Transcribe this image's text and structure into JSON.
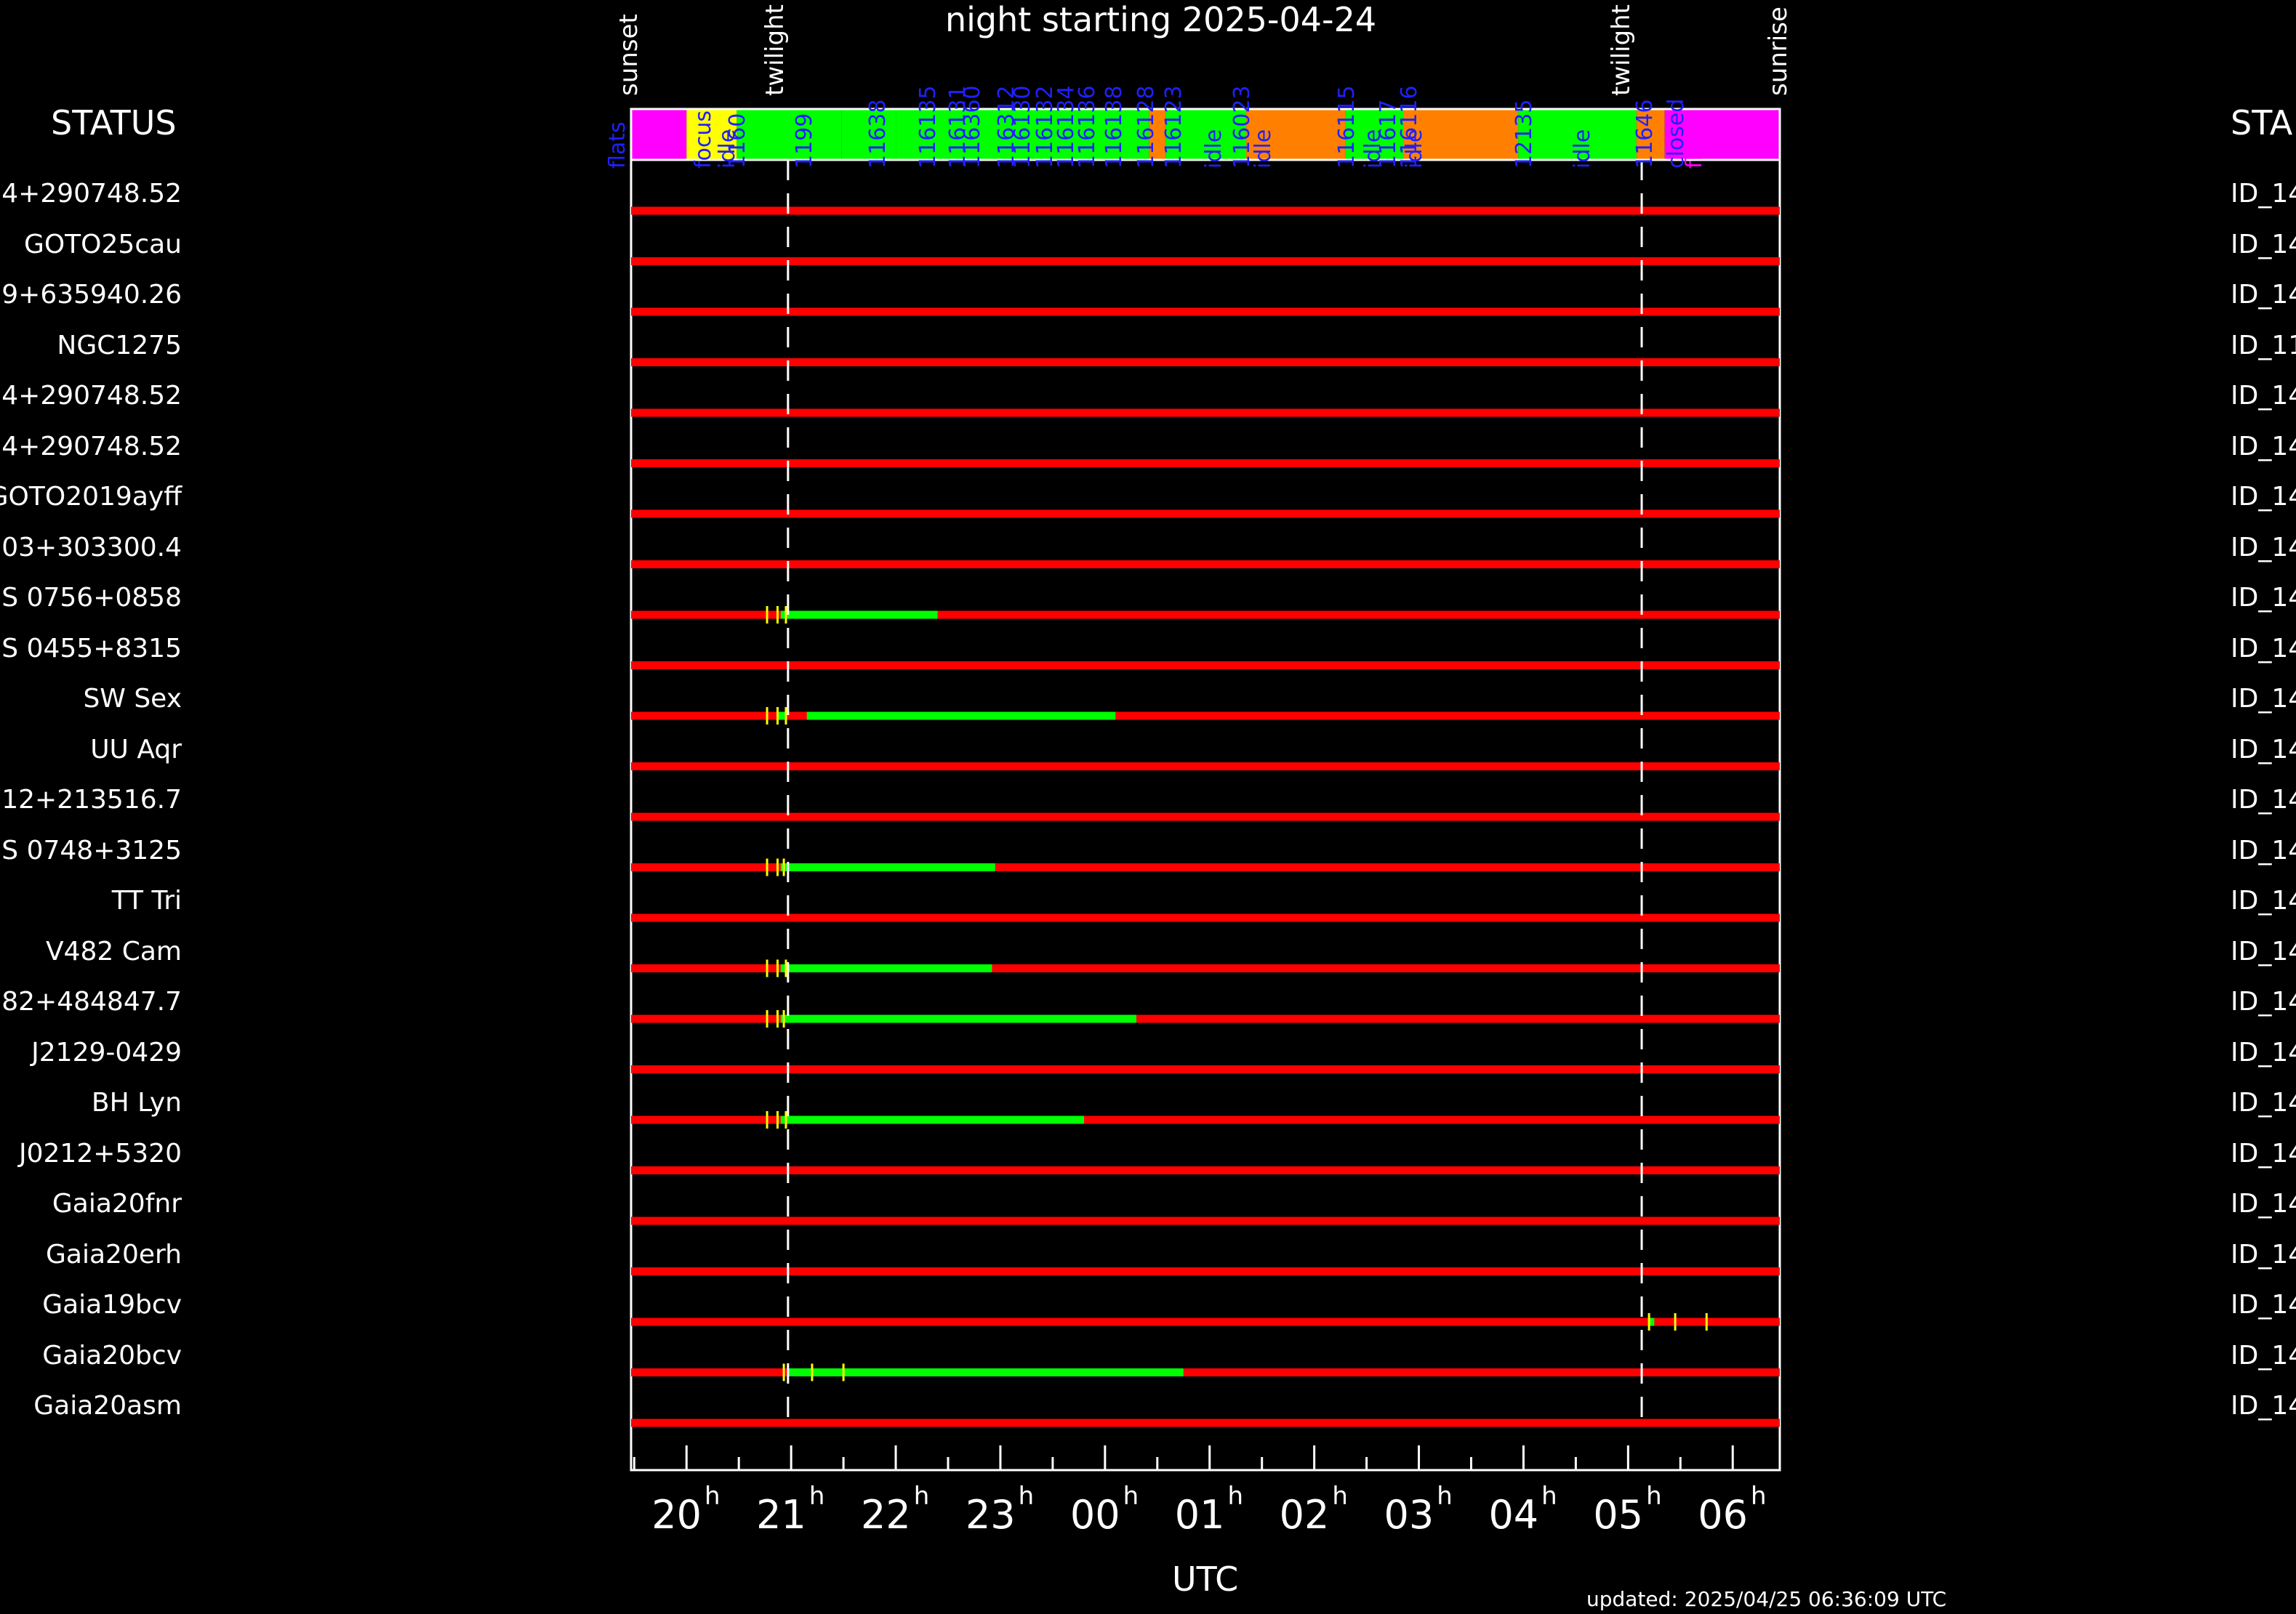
{
  "header": {
    "title": "night starting 2025-04-24",
    "updated": "updated: 2025/04/25 06:36:09 UTC",
    "status_left": "STATUS",
    "status_right": "STA"
  },
  "markers": {
    "sunset": "sunset",
    "twilight_evening": "twilight",
    "twilight_morning": "twilight",
    "sunrise": "sunrise",
    "sunset_hour": 19.47,
    "twilight_evening_hour": 20.97,
    "twilight_morning_hour": 5.13,
    "sunrise_hour": 6.45
  },
  "status_bar": {
    "segments": [
      {
        "start": 19.47,
        "end": 20.0,
        "color": "#ff00ff"
      },
      {
        "start": 20.0,
        "end": 20.48,
        "color": "#ffff00"
      },
      {
        "start": 20.48,
        "end": 21.48,
        "color": "#00ff00"
      },
      {
        "start": 21.48,
        "end": 22.0,
        "color": "#00ff00"
      },
      {
        "start": 22.0,
        "end": 0.42,
        "color": "#00ff00"
      },
      {
        "start": 0.42,
        "end": 0.58,
        "color": "#ff8000"
      },
      {
        "start": 0.58,
        "end": 1.35,
        "color": "#00ff00"
      },
      {
        "start": 1.35,
        "end": 2.3,
        "color": "#ff8000"
      },
      {
        "start": 2.3,
        "end": 2.85,
        "color": "#00ff00"
      },
      {
        "start": 2.85,
        "end": 3.95,
        "color": "#ff8000"
      },
      {
        "start": 3.95,
        "end": 5.08,
        "color": "#00ff00"
      },
      {
        "start": 5.08,
        "end": 5.35,
        "color": "#ff8000"
      },
      {
        "start": 5.35,
        "end": 6.45,
        "color": "#ff00ff"
      }
    ],
    "labels": [
      {
        "text": "flats",
        "hour": 19.33,
        "color": "#2020ff"
      },
      {
        "text": "focus",
        "hour": 20.15,
        "color": "#2020ff"
      },
      {
        "text": "idle",
        "hour": 20.38,
        "color": "#2020ff"
      },
      {
        "text": "1160",
        "hour": 20.48,
        "color": "#2020ff"
      },
      {
        "text": "1199",
        "hour": 21.12,
        "color": "#2020ff"
      },
      {
        "text": "11638",
        "hour": 21.82,
        "color": "#2020ff"
      },
      {
        "text": "116135",
        "hour": 22.3,
        "color": "#2020ff"
      },
      {
        "text": "116131",
        "hour": 22.58,
        "color": "#2020ff"
      },
      {
        "text": "116360",
        "hour": 22.72,
        "color": "#2020ff"
      },
      {
        "text": "116312",
        "hour": 23.05,
        "color": "#2020ff"
      },
      {
        "text": "116130",
        "hour": 23.2,
        "color": "#2020ff"
      },
      {
        "text": "116132",
        "hour": 23.42,
        "color": "#2020ff"
      },
      {
        "text": "116134",
        "hour": 23.62,
        "color": "#2020ff"
      },
      {
        "text": "116136",
        "hour": 23.82,
        "color": "#2020ff"
      },
      {
        "text": "116138",
        "hour": 0.08,
        "color": "#2020ff"
      },
      {
        "text": "116128",
        "hour": 0.38,
        "color": "#2020ff"
      },
      {
        "text": "116123",
        "hour": 0.65,
        "color": "#2020ff"
      },
      {
        "text": "idle",
        "hour": 1.03,
        "color": "#2020ff"
      },
      {
        "text": "116023",
        "hour": 1.3,
        "color": "#2020ff"
      },
      {
        "text": "idle",
        "hour": 1.5,
        "color": "#2020ff"
      },
      {
        "text": "116115",
        "hour": 2.3,
        "color": "#2020ff"
      },
      {
        "text": "idle",
        "hour": 2.55,
        "color": "#2020ff"
      },
      {
        "text": "11617",
        "hour": 2.7,
        "color": "#2020ff"
      },
      {
        "text": "idle",
        "hour": 2.95,
        "color": "#2020ff"
      },
      {
        "text": "116116",
        "hour": 2.9,
        "color": "#2020ff"
      },
      {
        "text": "12135",
        "hour": 4.0,
        "color": "#2020ff"
      },
      {
        "text": "idle",
        "hour": 4.55,
        "color": "#2020ff"
      },
      {
        "text": "11646",
        "hour": 5.15,
        "color": "#2020ff"
      },
      {
        "text": "closed",
        "hour": 5.45,
        "color": "#2020ff"
      },
      {
        "text": "flats",
        "hour": 5.62,
        "color": "#ff00ff"
      }
    ]
  },
  "chart_data": {
    "type": "timeline",
    "xlabel": "UTC",
    "x_range_hours": [
      19.47,
      6.45
    ],
    "ticks": [
      {
        "label": "20",
        "hour": 20
      },
      {
        "label": "21",
        "hour": 21
      },
      {
        "label": "22",
        "hour": 22
      },
      {
        "label": "23",
        "hour": 23
      },
      {
        "label": "00",
        "hour": 0
      },
      {
        "label": "01",
        "hour": 1
      },
      {
        "label": "02",
        "hour": 2
      },
      {
        "label": "03",
        "hour": 3
      },
      {
        "label": "04",
        "hour": 4
      },
      {
        "label": "05",
        "hour": 5
      },
      {
        "label": "06",
        "hour": 6
      }
    ],
    "tick_superscript": "h",
    "rows": [
      {
        "name": "4+290748.52",
        "right": "ID_14",
        "green": [],
        "ticks": []
      },
      {
        "name": "GOTO25cau",
        "right": "ID_14",
        "green": [],
        "ticks": []
      },
      {
        "name": "9+635940.26",
        "right": "ID_14",
        "green": [],
        "ticks": []
      },
      {
        "name": "NGC1275",
        "right": "ID_11",
        "green": [],
        "ticks": []
      },
      {
        "name": "4+290748.52",
        "right": "ID_14",
        "green": [],
        "ticks": []
      },
      {
        "name": "4+290748.52",
        "right": "ID_14",
        "green": [],
        "ticks": []
      },
      {
        "name": "GOTO2019ayff",
        "right": "ID_14",
        "green": [],
        "ticks": []
      },
      {
        "name": "03+303300.4",
        "right": "ID_14",
        "green": [],
        "ticks": []
      },
      {
        "name": "S 0756+0858",
        "right": "ID_14",
        "green": [
          [
            20.9,
            22.4
          ]
        ],
        "ticks": [
          20.77,
          20.87,
          20.95
        ]
      },
      {
        "name": "S 0455+8315",
        "right": "ID_14",
        "green": [],
        "ticks": []
      },
      {
        "name": "SW Sex",
        "right": "ID_14",
        "green": [
          [
            20.88,
            20.95
          ],
          [
            21.15,
            0.1
          ]
        ],
        "ticks": [
          20.77,
          20.87,
          20.95
        ]
      },
      {
        "name": "UU Aqr",
        "right": "ID_14",
        "green": [],
        "ticks": []
      },
      {
        "name": "12+213516.7",
        "right": "ID_14",
        "green": [],
        "ticks": []
      },
      {
        "name": "S 0748+3125",
        "right": "ID_14",
        "green": [
          [
            20.9,
            22.95
          ]
        ],
        "ticks": [
          20.77,
          20.87,
          20.93
        ]
      },
      {
        "name": "TT Tri",
        "right": "ID_14",
        "green": [],
        "ticks": []
      },
      {
        "name": "V482 Cam",
        "right": "ID_14",
        "green": [
          [
            20.9,
            22.92
          ]
        ],
        "ticks": [
          20.77,
          20.87,
          20.95
        ]
      },
      {
        "name": "82+484847.7",
        "right": "ID_14",
        "green": [
          [
            20.9,
            0.3
          ]
        ],
        "ticks": [
          20.77,
          20.87,
          20.93
        ]
      },
      {
        "name": "J2129-0429",
        "right": "ID_14",
        "green": [],
        "ticks": []
      },
      {
        "name": "BH Lyn",
        "right": "ID_14",
        "green": [
          [
            20.9,
            23.8
          ]
        ],
        "ticks": [
          20.77,
          20.87,
          20.95
        ]
      },
      {
        "name": "J0212+5320",
        "right": "ID_14",
        "green": [],
        "ticks": []
      },
      {
        "name": "Gaia20fnr",
        "right": "ID_14",
        "green": [],
        "ticks": []
      },
      {
        "name": "Gaia20erh",
        "right": "ID_14",
        "green": [],
        "ticks": []
      },
      {
        "name": "Gaia19bcv",
        "right": "ID_14",
        "green": [
          [
            5.2,
            5.25
          ]
        ],
        "ticks": [
          5.2,
          5.45,
          5.75
        ]
      },
      {
        "name": "Gaia20bcv",
        "right": "ID_14",
        "green": [
          [
            20.97,
            0.75
          ]
        ],
        "ticks": [
          20.93,
          21.2,
          21.5
        ]
      },
      {
        "name": "Gaia20asm",
        "right": "ID_14",
        "green": [],
        "ticks": []
      }
    ]
  }
}
